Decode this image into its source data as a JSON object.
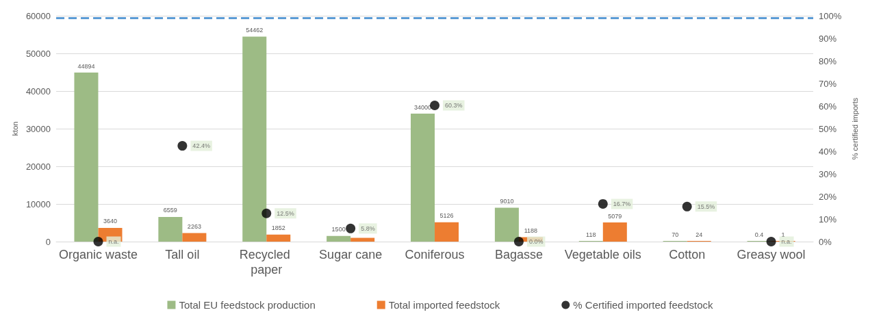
{
  "chart_data": {
    "type": "bar",
    "ylabel": "kton",
    "y2label": "% certified imports",
    "categories": [
      "Organic waste",
      "Tall oil",
      "Recycled paper",
      "Sugar cane",
      "Coniferous",
      "Bagasse",
      "Vegetable oils",
      "Cotton",
      "Greasy wool"
    ],
    "series": [
      {
        "name": "Total EU feedstock production",
        "color": "#9dbb85",
        "values": [
          44894,
          6559,
          54462,
          1500,
          34000,
          9010,
          118,
          70,
          0.4
        ],
        "value_labels": [
          "44894",
          "6559",
          "54462",
          "1500",
          "34000",
          "9010",
          "118",
          "70",
          "0.4"
        ]
      },
      {
        "name": "Total imported feedstock",
        "color": "#ed7d31",
        "values": [
          3640,
          2263,
          1852,
          1000,
          5126,
          1188,
          5079,
          24,
          1
        ],
        "value_labels": [
          "3640",
          "2263",
          "1852",
          null,
          "5126",
          "1188",
          "5079",
          "24",
          "1"
        ]
      },
      {
        "name": "% Certified imported feedstock",
        "type": "scatter",
        "axis": "y2",
        "color": "#000000",
        "values": [
          0,
          42.4,
          12.5,
          5.8,
          60.3,
          0.0,
          16.7,
          15.5,
          0
        ],
        "value_labels": [
          "n.a.",
          "42.4%",
          "12.5%",
          "5.8%",
          "60.3%",
          "0.0%",
          "16.7%",
          "15.5%",
          "n.a."
        ]
      }
    ],
    "ylim": [
      0,
      60000
    ],
    "yticks": [
      0,
      10000,
      20000,
      30000,
      40000,
      50000,
      60000
    ],
    "y2lim": [
      0,
      100
    ],
    "y2ticks": [
      {
        "value": 0,
        "label": "0%"
      },
      {
        "value": 10,
        "label": "10%"
      },
      {
        "value": 20,
        "label": "20%"
      },
      {
        "value": 30,
        "label": "30%"
      },
      {
        "value": 40,
        "label": "40%"
      },
      {
        "value": 50,
        "label": "50%"
      },
      {
        "value": 60,
        "label": "60%"
      },
      {
        "value": 70,
        "label": "70%"
      },
      {
        "value": 80,
        "label": "80%"
      },
      {
        "value": 90,
        "label": "90%"
      },
      {
        "value": 100,
        "label": "100%"
      }
    ],
    "ref_lines": [
      {
        "axis": "y2",
        "value": 99,
        "label": null,
        "color": "#5b9bd5",
        "line_style": "dashed"
      }
    ],
    "grid": "y",
    "legend": "bottom",
    "marker": "circle"
  }
}
